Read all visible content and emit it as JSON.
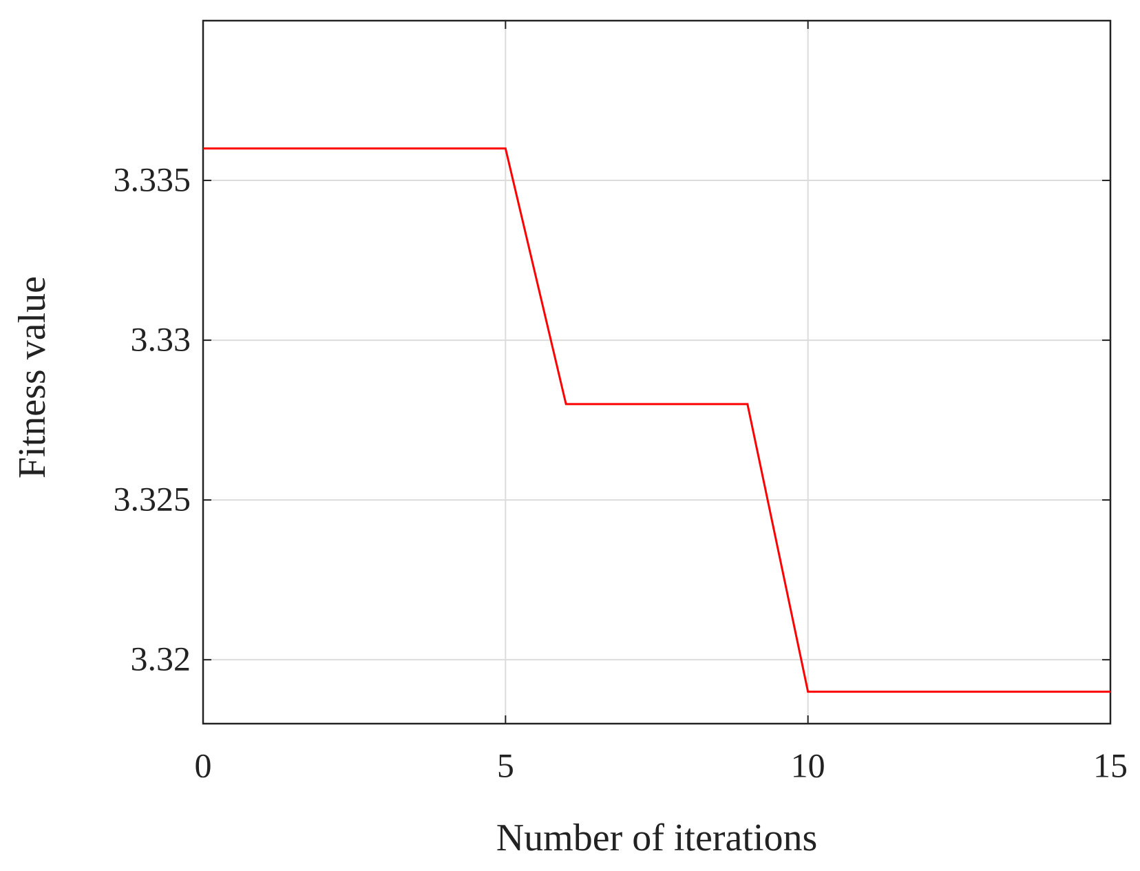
{
  "chart_data": {
    "type": "line",
    "x_label": "Number of iterations",
    "y_label": "Fitness value",
    "x": [
      0,
      1,
      2,
      3,
      4,
      5,
      6,
      7,
      8,
      9,
      10,
      11,
      12,
      13,
      14,
      15
    ],
    "series": [
      {
        "color": "#ff0000",
        "values": [
          3.336,
          3.336,
          3.336,
          3.336,
          3.336,
          3.336,
          3.328,
          3.328,
          3.328,
          3.328,
          3.319,
          3.319,
          3.319,
          3.319,
          3.319,
          3.319
        ]
      }
    ],
    "xlim": [
      0,
      15
    ],
    "xticks": [
      0,
      5,
      10,
      15
    ],
    "ylim": [
      3.318,
      3.34
    ],
    "yticks": [
      3.32,
      3.325,
      3.33,
      3.335
    ],
    "grid": true
  }
}
